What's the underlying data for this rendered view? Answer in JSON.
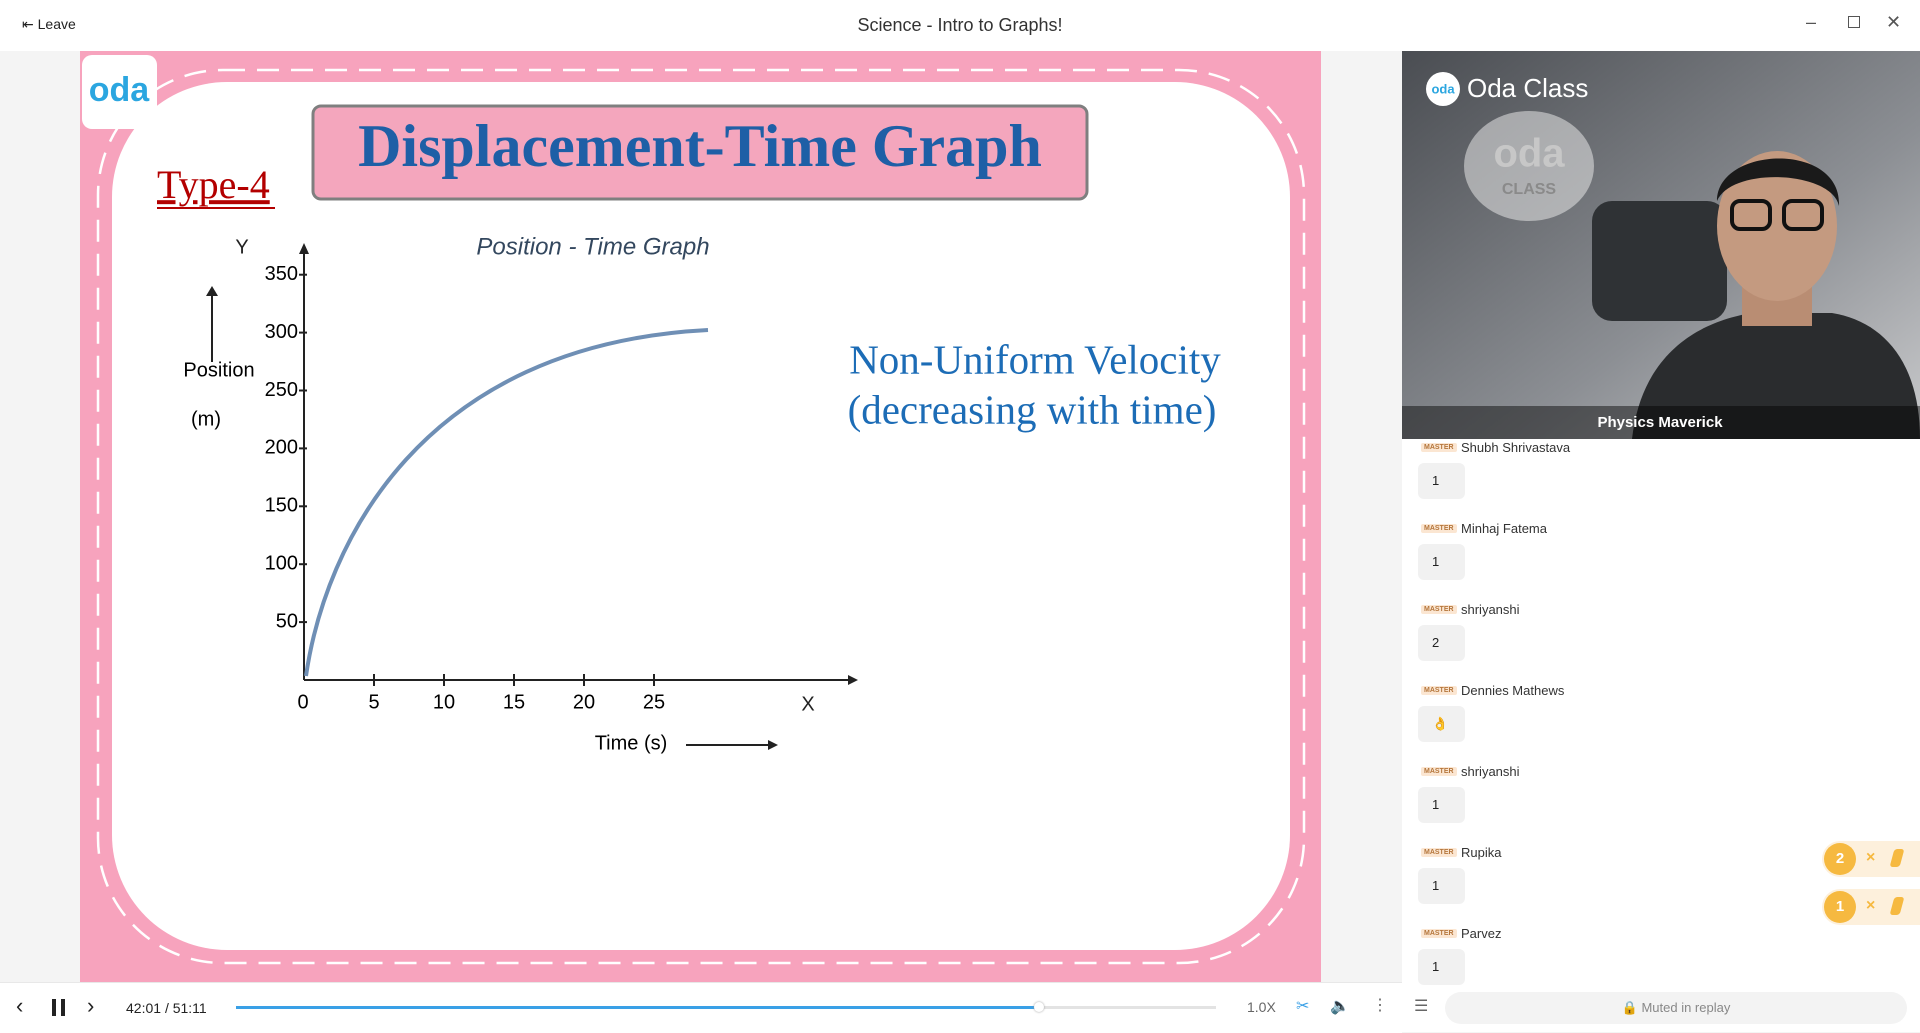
{
  "header": {
    "leave": "Leave",
    "title": "Science - Intro to Graphs!"
  },
  "slide": {
    "logo": "oda",
    "type_label": "Type-4",
    "title": "Displacement-Time Graph",
    "graph": {
      "title": "Position - Time Graph",
      "y_axis_letter": "Y",
      "x_axis_letter": "X",
      "y_label": "Position",
      "y_unit": "(m)",
      "x_label": "Time (s)",
      "xticks": [
        0,
        5,
        10,
        15,
        20,
        25
      ],
      "yticks": [
        50,
        100,
        150,
        200,
        250,
        300,
        350
      ]
    },
    "note": [
      "Non-Uniform Velocity",
      "(decreasing with time)"
    ]
  },
  "video": {
    "brand": "Oda Class",
    "logo_text": "oda",
    "logo_sub": "CLASS",
    "presenter": "Physics Maverick"
  },
  "chat": {
    "messages": [
      {
        "badge": "MASTER",
        "name": "Shubh Shrivastava",
        "text": "1"
      },
      {
        "badge": "MASTER",
        "name": "Minhaj Fatema",
        "text": "1"
      },
      {
        "badge": "MASTER",
        "name": "shriyanshi",
        "text": "2"
      },
      {
        "badge": "MASTER",
        "name": "Dennies Mathews",
        "text": "👌"
      },
      {
        "badge": "MASTER",
        "name": "shriyanshi",
        "text": "1"
      },
      {
        "badge": "MASTER",
        "name": "Rupika",
        "text": "1"
      },
      {
        "badge": "MASTER",
        "name": "Parvez",
        "text": "1"
      }
    ]
  },
  "reactions": [
    {
      "count": 2,
      "times": "×"
    },
    {
      "count": 1,
      "times": "×"
    }
  ],
  "player": {
    "current": "42:01",
    "total": "/ 51:11",
    "speed": "1.0X",
    "muted": "Muted in replay"
  }
}
